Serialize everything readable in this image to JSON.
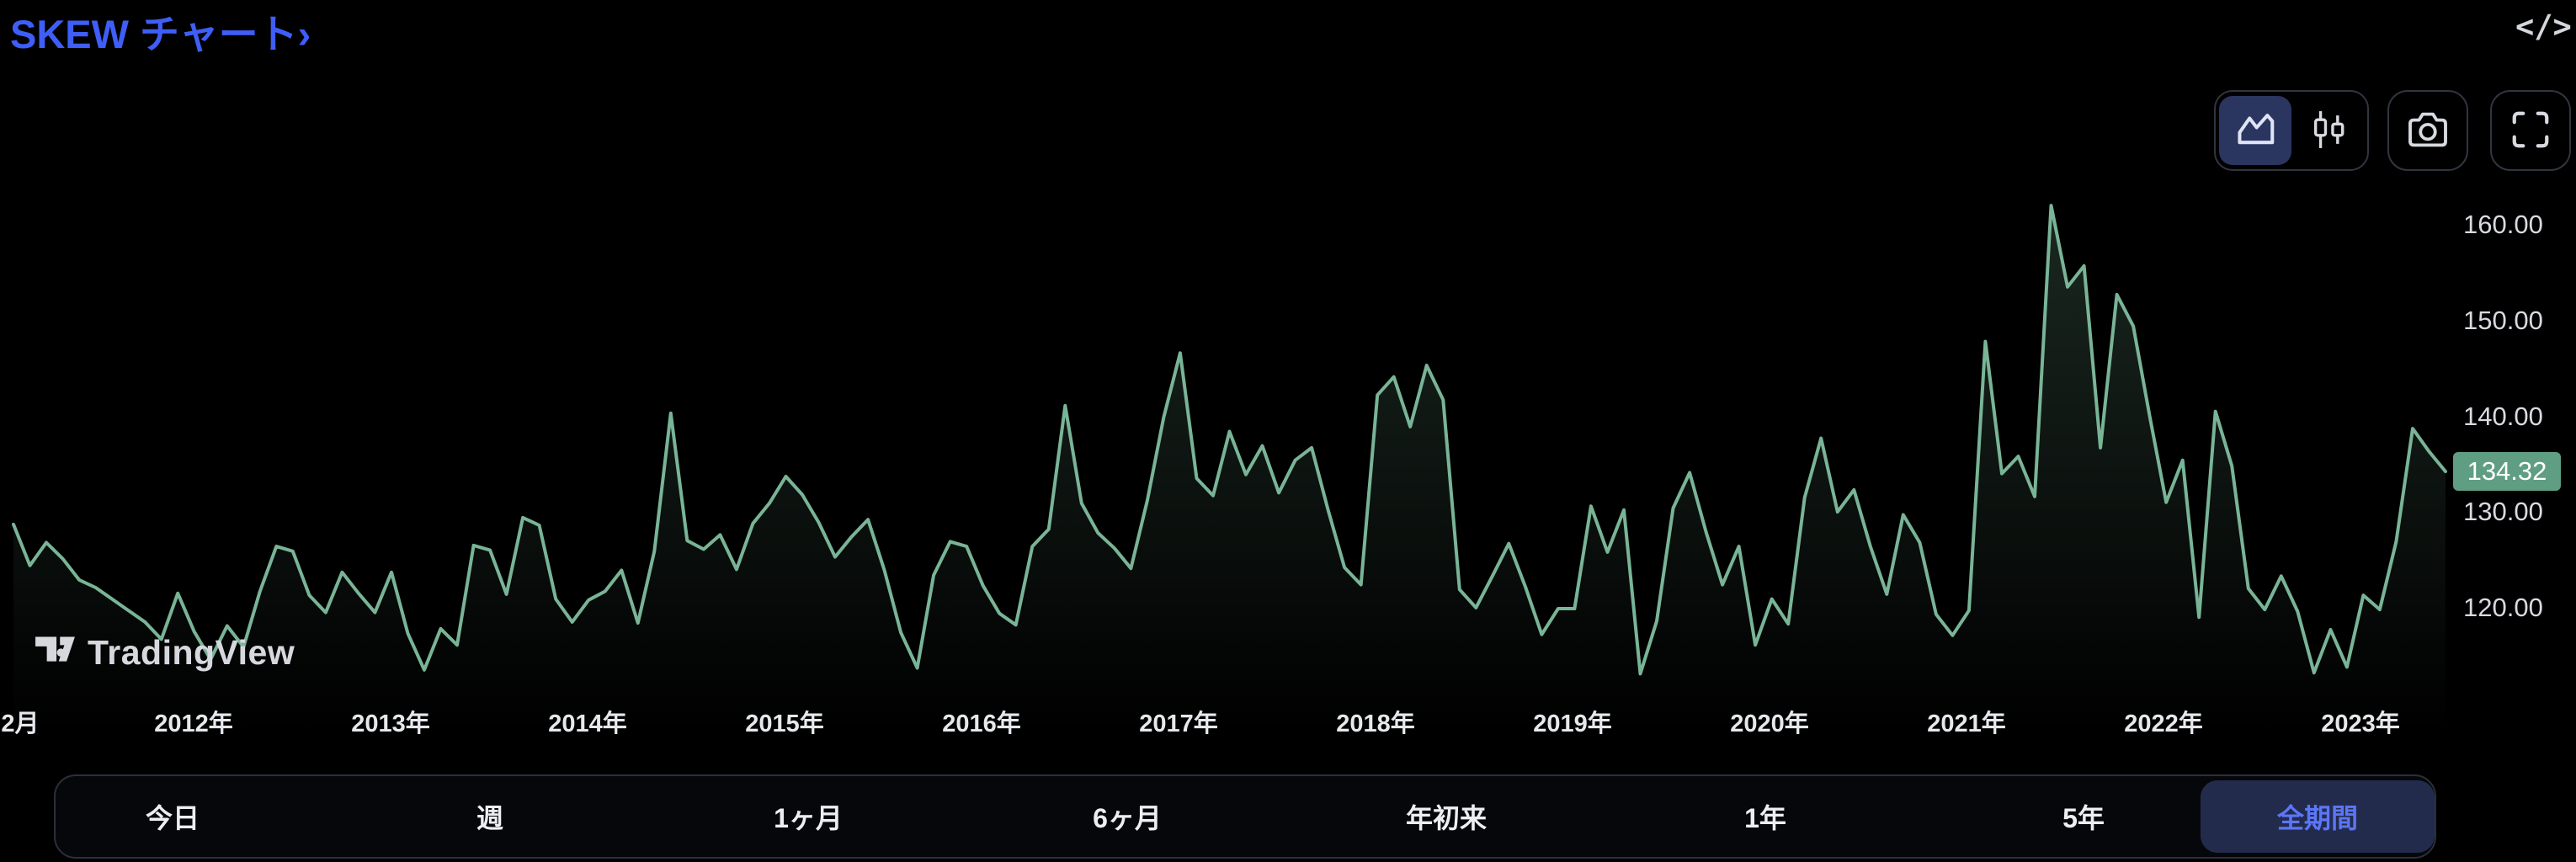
{
  "header": {
    "title": "SKEW チャート›",
    "embed_icon_glyph": "</>"
  },
  "toolbar": {
    "chart_styles": [
      {
        "name": "area-style",
        "selected": true
      },
      {
        "name": "candles-style",
        "selected": false
      }
    ],
    "buttons": [
      "snapshot-camera",
      "fullscreen"
    ]
  },
  "watermark": {
    "label": "TradingView"
  },
  "range_tabs": {
    "items": [
      {
        "label": "今日",
        "selected": false
      },
      {
        "label": "週",
        "selected": false
      },
      {
        "label": "1ヶ月",
        "selected": false
      },
      {
        "label": "6ヶ月",
        "selected": false
      },
      {
        "label": "年初来",
        "selected": false
      },
      {
        "label": "1年",
        "selected": false
      },
      {
        "label": "5年",
        "selected": false
      },
      {
        "label": "全期間",
        "selected": true
      }
    ]
  },
  "chart_data": {
    "type": "area",
    "title": "SKEW",
    "frequency": "monthly",
    "start_label": "2月",
    "x_ticks": [
      "2月",
      "2012年",
      "2013年",
      "2014年",
      "2015年",
      "2016年",
      "2017年",
      "2018年",
      "2019年",
      "2020年",
      "2021年",
      "2022年",
      "2023年"
    ],
    "y_ticks": [
      "160.00",
      "150.00",
      "140.00",
      "130.00",
      "120.00"
    ],
    "ylim": [
      111,
      166
    ],
    "grid": false,
    "legend": "none",
    "last_value": 134.32,
    "last_label": "134.32",
    "line_color": "#79b497",
    "fill_color_top": "rgba(121,180,151,0.22)",
    "fill_color_bottom": "rgba(121,180,151,0.0)",
    "badge_color": "#5f9e82",
    "values": [
      128.8,
      124.5,
      126.9,
      125.2,
      123.0,
      122.2,
      121.0,
      119.8,
      118.6,
      116.8,
      121.6,
      117.6,
      114.7,
      118.2,
      116.0,
      121.8,
      126.5,
      126.0,
      121.4,
      119.6,
      123.8,
      121.6,
      119.6,
      123.8,
      117.4,
      113.6,
      117.9,
      116.2,
      126.6,
      126.1,
      121.5,
      129.5,
      128.7,
      121.0,
      118.6,
      120.9,
      121.8,
      124.0,
      118.5,
      126.0,
      140.4,
      127.1,
      126.2,
      127.7,
      124.1,
      128.9,
      131.0,
      133.8,
      131.9,
      129.0,
      125.4,
      127.5,
      129.3,
      124.0,
      117.5,
      113.8,
      123.5,
      127.0,
      126.5,
      122.4,
      119.5,
      118.3,
      126.5,
      128.3,
      141.2,
      131.0,
      127.9,
      126.3,
      124.2,
      131.3,
      140.0,
      146.7,
      133.6,
      131.8,
      138.5,
      134.0,
      137.0,
      132.1,
      135.5,
      136.8,
      130.3,
      124.3,
      122.5,
      142.3,
      144.2,
      139.0,
      145.4,
      141.8,
      122.0,
      120.1,
      123.4,
      126.8,
      122.3,
      117.3,
      120.0,
      120.0,
      130.7,
      125.9,
      130.3,
      113.2,
      118.7,
      130.5,
      134.2,
      128.0,
      122.5,
      126.5,
      116.2,
      121.0,
      118.4,
      131.6,
      137.8,
      130.1,
      132.4,
      126.5,
      121.5,
      129.8,
      126.9,
      119.4,
      117.2,
      119.8,
      147.9,
      134.1,
      135.9,
      131.7,
      162.1,
      153.6,
      155.8,
      136.8,
      152.8,
      149.5,
      140.1,
      131.1,
      135.5,
      119.1,
      140.6,
      134.9,
      122.1,
      119.9,
      123.4,
      119.7,
      113.3,
      117.8,
      113.9,
      121.4,
      119.9,
      127.0,
      138.8,
      136.4,
      134.32
    ]
  }
}
